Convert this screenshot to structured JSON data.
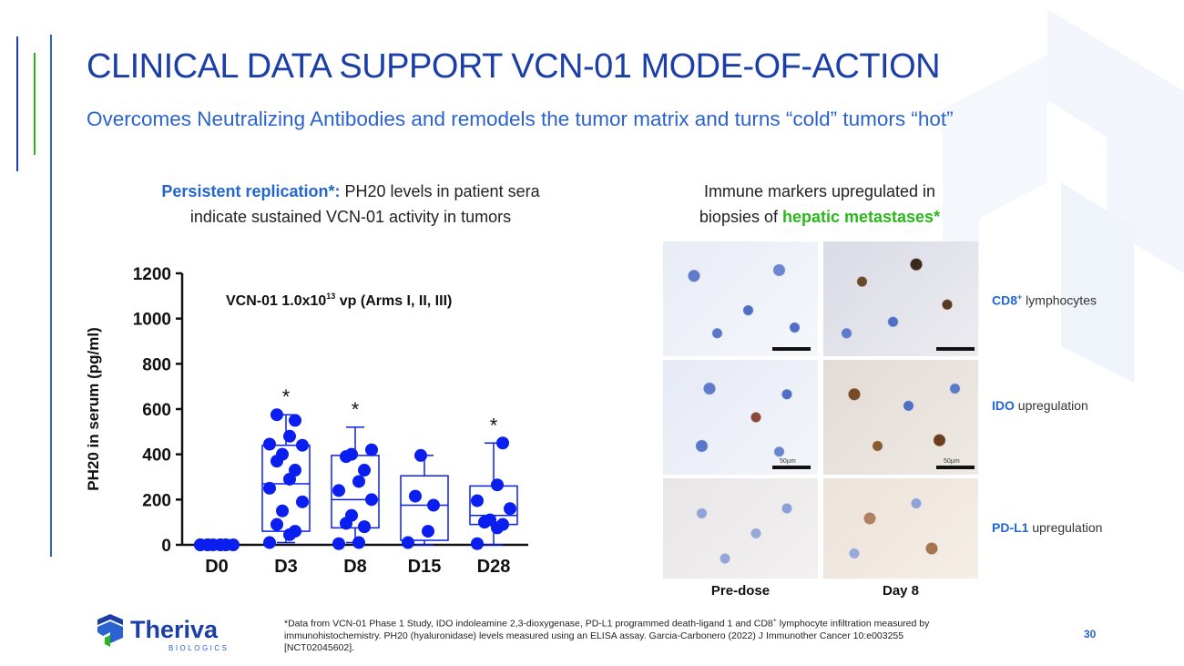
{
  "slide": {
    "title": "CLINICAL DATA SUPPORT VCN-01 MODE-OF-ACTION",
    "subtitle": "Overcomes Neutralizing Antibodies and remodels the tumor matrix and turns “cold” tumors “hot”",
    "page_number": "30"
  },
  "left_panel": {
    "heading_highlight": "Persistent replication*:",
    "heading_rest": " PH20 levels in patient sera",
    "heading_line2": "indicate sustained VCN-01 activity in tumors"
  },
  "right_panel": {
    "heading_line1": "Immune markers upregulated in",
    "heading_line2_prefix": "biopsies of ",
    "heading_highlight": "hepatic metastases*",
    "columns": [
      "Pre-dose",
      "Day 8"
    ],
    "rows": [
      {
        "marker": "CD8",
        "sup": "+",
        "rest": " lymphocytes"
      },
      {
        "marker": "IDO",
        "sup": "",
        "rest": " upregulation"
      },
      {
        "marker": "PD-L1",
        "sup": "",
        "rest": " upregulation"
      }
    ],
    "scale_label": "50µm"
  },
  "footnote": {
    "line1": "*Data from VCN-01 Phase 1 Study, IDO indoleamine 2,3-dioxygenase, PD-L1 programmed death-ligand 1 and CD8",
    "line1_sup": "+",
    "line1_end": " lymphocyte infiltration measured by",
    "line2": "immunohistochemistry. PH20 (hyaluronidase) levels measured using an ELISA assay. Garcia-Carbonero (2022) J Immunother Cancer 10:e003255",
    "line3": "[NCT02045602]."
  },
  "logo": {
    "name": "Theriva",
    "tagline": "BIOLOGICS"
  },
  "chart_data": {
    "type": "scatter",
    "subtype": "box-and-dot",
    "title_prefix": "VCN-01 1.0x10",
    "title_sup": "13",
    "title_suffix": " vp (Arms I, II, III)",
    "ylabel": "PH20 in serum (pg/ml)",
    "xlabel": "",
    "ylim": [
      0,
      1200
    ],
    "yticks": [
      0,
      200,
      400,
      600,
      800,
      1000,
      1200
    ],
    "categories": [
      "D0",
      "D3",
      "D8",
      "D15",
      "D28"
    ],
    "significance": [
      "",
      "*",
      "*",
      "",
      "*"
    ],
    "boxes": [
      null,
      {
        "min": 10,
        "q1": 60,
        "median": 270,
        "q3": 440,
        "max": 575
      },
      {
        "min": 10,
        "q1": 75,
        "median": 200,
        "q3": 395,
        "max": 520
      },
      {
        "min": 0,
        "q1": 20,
        "median": 175,
        "q3": 305,
        "max": 395
      },
      {
        "min": 0,
        "q1": 90,
        "median": 130,
        "q3": 260,
        "max": 450
      }
    ],
    "points": [
      [
        0,
        0,
        0,
        0,
        0,
        0,
        0,
        0,
        0,
        0
      ],
      [
        10,
        45,
        60,
        90,
        150,
        190,
        250,
        290,
        330,
        370,
        400,
        440,
        445,
        480,
        550,
        575
      ],
      [
        5,
        10,
        80,
        95,
        130,
        200,
        240,
        280,
        330,
        390,
        400,
        420
      ],
      [
        10,
        60,
        175,
        215,
        395
      ],
      [
        5,
        75,
        90,
        100,
        110,
        160,
        195,
        265,
        450
      ]
    ],
    "series_color": "#0a1ef0",
    "grid": false
  },
  "colors": {
    "title": "#1b3ea7",
    "subtitle": "#2a62cf",
    "accent_green": "#2ab71b",
    "accent_blue": "#2366d1"
  }
}
